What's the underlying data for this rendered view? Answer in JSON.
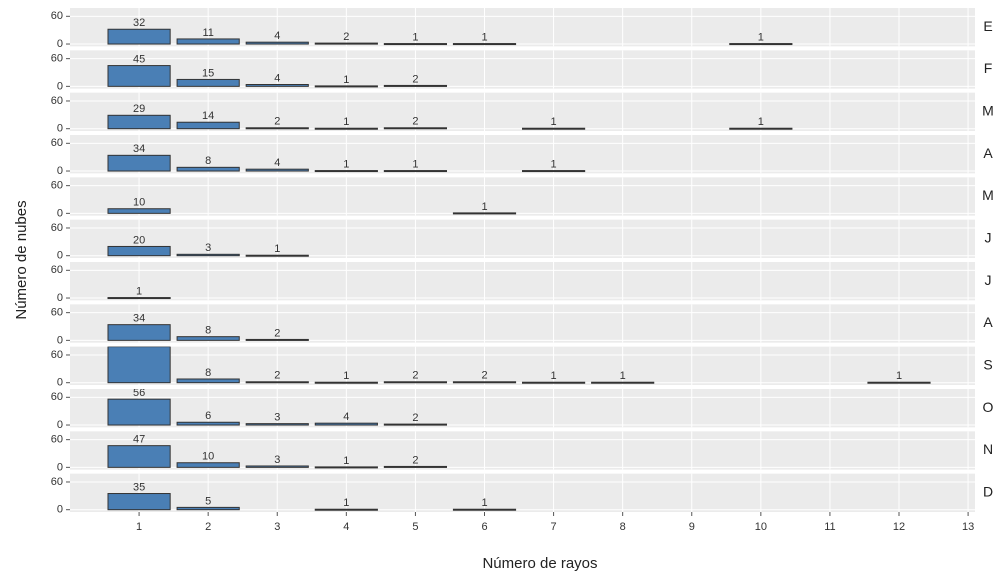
{
  "chart_data": {
    "type": "bar",
    "xlabel": "Número de rayos",
    "ylabel": "Número de nubes",
    "xlim": [
      0,
      13.1
    ],
    "xticks": [
      1,
      2,
      3,
      4,
      5,
      6,
      7,
      8,
      9,
      10,
      11,
      12,
      13
    ],
    "ylim": [
      -5,
      78
    ],
    "yticks": [
      0,
      60
    ],
    "color": "#4a7fb5",
    "grid": true,
    "facets": [
      {
        "name": "E",
        "x": [
          1,
          2,
          3,
          4,
          5,
          6,
          10
        ],
        "values": [
          32,
          11,
          4,
          2,
          1,
          1,
          1
        ]
      },
      {
        "name": "F",
        "x": [
          1,
          2,
          3,
          4,
          5
        ],
        "values": [
          45,
          15,
          4,
          1,
          2
        ]
      },
      {
        "name": "M",
        "x": [
          1,
          2,
          3,
          4,
          5,
          7,
          10
        ],
        "values": [
          29,
          14,
          2,
          1,
          2,
          1,
          1
        ]
      },
      {
        "name": "A",
        "x": [
          1,
          2,
          3,
          4,
          5,
          7
        ],
        "values": [
          34,
          8,
          4,
          1,
          1,
          1
        ]
      },
      {
        "name": "M",
        "x": [
          1,
          6
        ],
        "values": [
          10,
          1
        ]
      },
      {
        "name": "J",
        "x": [
          1,
          2,
          3
        ],
        "values": [
          20,
          3,
          1
        ]
      },
      {
        "name": "J",
        "x": [
          1
        ],
        "values": [
          1
        ]
      },
      {
        "name": "A",
        "x": [
          1,
          2,
          3
        ],
        "values": [
          34,
          8,
          2
        ]
      },
      {
        "name": "S",
        "x": [
          1,
          2,
          3,
          4,
          5,
          6,
          7,
          8,
          12
        ],
        "values": [
          78,
          8,
          2,
          1,
          2,
          2,
          1,
          1,
          1
        ]
      },
      {
        "name": "O",
        "x": [
          1,
          2,
          3,
          4,
          5
        ],
        "values": [
          56,
          6,
          3,
          4,
          2
        ]
      },
      {
        "name": "N",
        "x": [
          1,
          2,
          3,
          4,
          5
        ],
        "values": [
          47,
          10,
          3,
          1,
          2
        ]
      },
      {
        "name": "D",
        "x": [
          1,
          2,
          4,
          6
        ],
        "values": [
          35,
          5,
          1,
          1
        ]
      }
    ]
  }
}
